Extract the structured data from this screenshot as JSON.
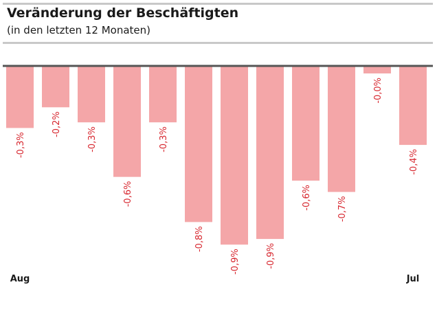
{
  "chart_data": {
    "type": "bar",
    "title": "Veränderung der Beschäftigten",
    "subtitle": "(in den letzten 12 Monaten)",
    "categories": [
      "Aug",
      "",
      "",
      "",
      "",
      "",
      "",
      "",
      "",
      "",
      "",
      "Jul"
    ],
    "values": [
      -0.33,
      -0.22,
      -0.3,
      -0.59,
      -0.3,
      -0.83,
      -0.95,
      -0.92,
      -0.61,
      -0.67,
      -0.04,
      -0.42
    ],
    "data_labels": [
      "-0,3%",
      "-0,2%",
      "-0,3%",
      "-0,6%",
      "-0,3%",
      "-0,8%",
      "-0,9%",
      "-0,9%",
      "-0,6%",
      "-0,7%",
      "-0,0%",
      "-0,4%"
    ],
    "ylim": [
      -1.0,
      0
    ],
    "grid": false,
    "colors": {
      "bar": "#f4a6a8",
      "label": "#d7262e",
      "axis": "#555555"
    }
  }
}
